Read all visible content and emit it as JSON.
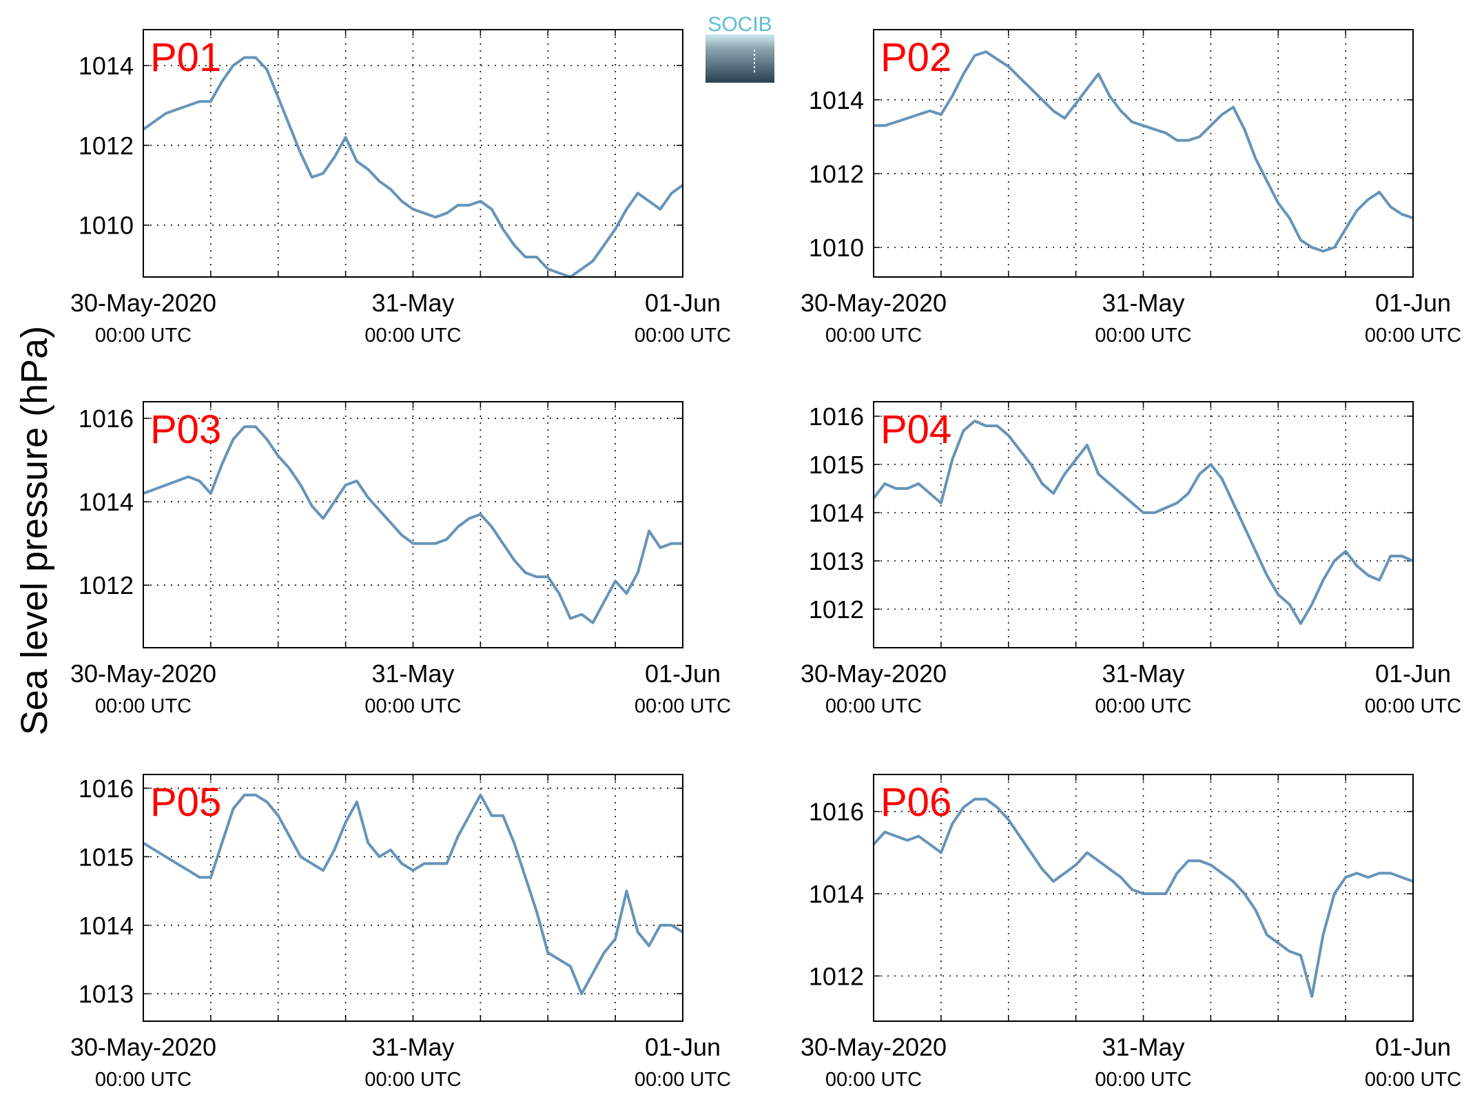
{
  "ylabel": "Sea level pressure (hPa)",
  "logo": {
    "text": "SOCIB",
    "colors": [
      "#5bbfd3",
      "#27414f"
    ]
  },
  "series_color": "#6794b8",
  "chart_data": [
    {
      "type": "line",
      "name": "P01",
      "xlim": [
        0,
        48
      ],
      "ylim": [
        1008.7,
        1014.9
      ],
      "yticks": [
        1010,
        1012,
        1014
      ],
      "x": [
        0,
        1,
        2,
        3,
        4,
        5,
        6,
        7,
        8,
        9,
        10,
        11,
        12,
        13,
        14,
        15,
        16,
        17,
        18,
        19,
        20,
        21,
        22,
        23,
        24,
        25,
        26,
        27,
        28,
        29,
        30,
        31,
        32,
        33,
        34,
        35,
        36,
        37,
        38,
        39,
        40,
        41,
        42,
        43,
        44,
        45,
        46,
        47,
        48
      ],
      "y": [
        1012.4,
        1012.6,
        1012.8,
        1012.9,
        1013.0,
        1013.1,
        1013.1,
        1013.6,
        1014.0,
        1014.2,
        1014.2,
        1013.9,
        1013.2,
        1012.5,
        1011.8,
        1011.2,
        1011.3,
        1011.7,
        1012.2,
        1011.6,
        1011.4,
        1011.1,
        1010.9,
        1010.6,
        1010.4,
        1010.3,
        1010.2,
        1010.3,
        1010.5,
        1010.5,
        1010.6,
        1010.4,
        1009.9,
        1009.5,
        1009.2,
        1009.2,
        1008.9,
        1008.8,
        1008.7,
        1008.9,
        1009.1,
        1009.5,
        1009.9,
        1010.4,
        1010.8,
        1010.6,
        1010.4,
        1010.8,
        1011.0
      ],
      "xticks": [
        {
          "date": "30-May-2020",
          "time": "00:00 UTC"
        },
        {
          "date": "31-May",
          "time": "00:00 UTC"
        },
        {
          "date": "01-Jun",
          "time": "00:00 UTC"
        }
      ]
    },
    {
      "type": "line",
      "name": "P02",
      "xlim": [
        0,
        48
      ],
      "ylim": [
        1009.2,
        1015.9
      ],
      "yticks": [
        1010,
        1012,
        1014
      ],
      "x": [
        0,
        1,
        2,
        3,
        4,
        5,
        6,
        7,
        8,
        9,
        10,
        11,
        12,
        13,
        14,
        15,
        16,
        17,
        18,
        19,
        20,
        21,
        22,
        23,
        24,
        25,
        26,
        27,
        28,
        29,
        30,
        31,
        32,
        33,
        34,
        35,
        36,
        37,
        38,
        39,
        40,
        41,
        42,
        43,
        44,
        45,
        46,
        47,
        48
      ],
      "y": [
        1013.3,
        1013.3,
        1013.4,
        1013.5,
        1013.6,
        1013.7,
        1013.6,
        1014.1,
        1014.7,
        1015.2,
        1015.3,
        1015.1,
        1014.9,
        1014.6,
        1014.3,
        1014.0,
        1013.7,
        1013.5,
        1013.9,
        1014.3,
        1014.7,
        1014.1,
        1013.7,
        1013.4,
        1013.3,
        1013.2,
        1013.1,
        1012.9,
        1012.9,
        1013.0,
        1013.3,
        1013.6,
        1013.8,
        1013.2,
        1012.4,
        1011.8,
        1011.2,
        1010.8,
        1010.2,
        1010.0,
        1009.9,
        1010.0,
        1010.5,
        1011.0,
        1011.3,
        1011.5,
        1011.1,
        1010.9,
        1010.8
      ],
      "xticks": [
        {
          "date": "30-May-2020",
          "time": "00:00 UTC"
        },
        {
          "date": "31-May",
          "time": "00:00 UTC"
        },
        {
          "date": "01-Jun",
          "time": "00:00 UTC"
        }
      ]
    },
    {
      "type": "line",
      "name": "P03",
      "xlim": [
        0,
        48
      ],
      "ylim": [
        1010.5,
        1016.4
      ],
      "yticks": [
        1012,
        1014,
        1016
      ],
      "x": [
        0,
        1,
        2,
        3,
        4,
        5,
        6,
        7,
        8,
        9,
        10,
        11,
        12,
        13,
        14,
        15,
        16,
        17,
        18,
        19,
        20,
        21,
        22,
        23,
        24,
        25,
        26,
        27,
        28,
        29,
        30,
        31,
        32,
        33,
        34,
        35,
        36,
        37,
        38,
        39,
        40,
        41,
        42,
        43,
        44,
        45,
        46,
        47,
        48
      ],
      "y": [
        1014.2,
        1014.3,
        1014.4,
        1014.5,
        1014.6,
        1014.5,
        1014.2,
        1014.9,
        1015.5,
        1015.8,
        1015.8,
        1015.5,
        1015.1,
        1014.8,
        1014.4,
        1013.9,
        1013.6,
        1014.0,
        1014.4,
        1014.5,
        1014.1,
        1013.8,
        1013.5,
        1013.2,
        1013.0,
        1013.0,
        1013.0,
        1013.1,
        1013.4,
        1013.6,
        1013.7,
        1013.4,
        1013.0,
        1012.6,
        1012.3,
        1012.2,
        1012.2,
        1011.8,
        1011.2,
        1011.3,
        1011.1,
        1011.6,
        1012.1,
        1011.8,
        1012.3,
        1013.3,
        1012.9,
        1013.0,
        1013.0
      ],
      "xticks": [
        {
          "date": "30-May-2020",
          "time": "00:00 UTC"
        },
        {
          "date": "31-May",
          "time": "00:00 UTC"
        },
        {
          "date": "01-Jun",
          "time": "00:00 UTC"
        }
      ]
    },
    {
      "type": "line",
      "name": "P04",
      "xlim": [
        0,
        48
      ],
      "ylim": [
        1011.2,
        1016.3
      ],
      "yticks": [
        1012,
        1013,
        1014,
        1015,
        1016
      ],
      "x": [
        0,
        1,
        2,
        3,
        4,
        5,
        6,
        7,
        8,
        9,
        10,
        11,
        12,
        13,
        14,
        15,
        16,
        17,
        18,
        19,
        20,
        21,
        22,
        23,
        24,
        25,
        26,
        27,
        28,
        29,
        30,
        31,
        32,
        33,
        34,
        35,
        36,
        37,
        38,
        39,
        40,
        41,
        42,
        43,
        44,
        45,
        46,
        47,
        48
      ],
      "y": [
        1014.3,
        1014.6,
        1014.5,
        1014.5,
        1014.6,
        1014.4,
        1014.2,
        1015.1,
        1015.7,
        1015.9,
        1015.8,
        1015.8,
        1015.6,
        1015.3,
        1015.0,
        1014.6,
        1014.4,
        1014.8,
        1015.1,
        1015.4,
        1014.8,
        1014.6,
        1014.4,
        1014.2,
        1014.0,
        1014.0,
        1014.1,
        1014.2,
        1014.4,
        1014.8,
        1015.0,
        1014.7,
        1014.2,
        1013.7,
        1013.2,
        1012.7,
        1012.3,
        1012.1,
        1011.7,
        1012.1,
        1012.6,
        1013.0,
        1013.2,
        1012.9,
        1012.7,
        1012.6,
        1013.1,
        1013.1,
        1013.0
      ],
      "xticks": [
        {
          "date": "30-May-2020",
          "time": "00:00 UTC"
        },
        {
          "date": "31-May",
          "time": "00:00 UTC"
        },
        {
          "date": "01-Jun",
          "time": "00:00 UTC"
        }
      ]
    },
    {
      "type": "line",
      "name": "P05",
      "xlim": [
        0,
        48
      ],
      "ylim": [
        1012.6,
        1016.2
      ],
      "yticks": [
        1013,
        1014,
        1015,
        1016
      ],
      "x": [
        0,
        1,
        2,
        3,
        4,
        5,
        6,
        7,
        8,
        9,
        10,
        11,
        12,
        13,
        14,
        15,
        16,
        17,
        18,
        19,
        20,
        21,
        22,
        23,
        24,
        25,
        26,
        27,
        28,
        29,
        30,
        31,
        32,
        33,
        34,
        35,
        36,
        37,
        38,
        39,
        40,
        41,
        42,
        43,
        44,
        45,
        46,
        47,
        48
      ],
      "y": [
        1015.2,
        1015.1,
        1015.0,
        1014.9,
        1014.8,
        1014.7,
        1014.7,
        1015.2,
        1015.7,
        1015.9,
        1015.9,
        1015.8,
        1015.6,
        1015.3,
        1015.0,
        1014.9,
        1014.8,
        1015.1,
        1015.5,
        1015.8,
        1015.2,
        1015.0,
        1015.1,
        1014.9,
        1014.8,
        1014.9,
        1014.9,
        1014.9,
        1015.3,
        1015.6,
        1015.9,
        1015.6,
        1015.6,
        1015.2,
        1014.7,
        1014.2,
        1013.6,
        1013.5,
        1013.4,
        1013.0,
        1013.3,
        1013.6,
        1013.8,
        1014.5,
        1013.9,
        1013.7,
        1014.0,
        1014.0,
        1013.9
      ],
      "xticks": [
        {
          "date": "30-May-2020",
          "time": "00:00 UTC"
        },
        {
          "date": "31-May",
          "time": "00:00 UTC"
        },
        {
          "date": "01-Jun",
          "time": "00:00 UTC"
        }
      ]
    },
    {
      "type": "line",
      "name": "P06",
      "xlim": [
        0,
        48
      ],
      "ylim": [
        1010.9,
        1016.9
      ],
      "yticks": [
        1012,
        1014,
        1016
      ],
      "x": [
        0,
        1,
        2,
        3,
        4,
        5,
        6,
        7,
        8,
        9,
        10,
        11,
        12,
        13,
        14,
        15,
        16,
        17,
        18,
        19,
        20,
        21,
        22,
        23,
        24,
        25,
        26,
        27,
        28,
        29,
        30,
        31,
        32,
        33,
        34,
        35,
        36,
        37,
        38,
        39,
        40,
        41,
        42,
        43,
        44,
        45,
        46,
        47,
        48
      ],
      "y": [
        1015.2,
        1015.5,
        1015.4,
        1015.3,
        1015.4,
        1015.2,
        1015.0,
        1015.7,
        1016.1,
        1016.3,
        1016.3,
        1016.1,
        1015.8,
        1015.4,
        1015.0,
        1014.6,
        1014.3,
        1014.5,
        1014.7,
        1015.0,
        1014.8,
        1014.6,
        1014.4,
        1014.1,
        1014.0,
        1014.0,
        1014.0,
        1014.5,
        1014.8,
        1014.8,
        1014.7,
        1014.5,
        1014.3,
        1014.0,
        1013.6,
        1013.0,
        1012.8,
        1012.6,
        1012.5,
        1011.5,
        1013.0,
        1014.0,
        1014.4,
        1014.5,
        1014.4,
        1014.5,
        1014.5,
        1014.4,
        1014.3
      ],
      "xticks": [
        {
          "date": "30-May-2020",
          "time": "00:00 UTC"
        },
        {
          "date": "31-May",
          "time": "00:00 UTC"
        },
        {
          "date": "01-Jun",
          "time": "00:00 UTC"
        }
      ]
    }
  ]
}
